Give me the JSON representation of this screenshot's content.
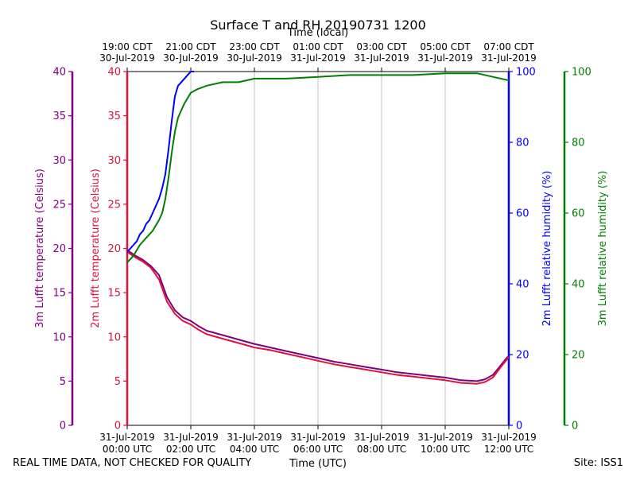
{
  "chart_data": {
    "type": "line",
    "title": "Surface T and RH 20190731 1200",
    "top_axis_label": "Time (local)",
    "bottom_axis_label": "Time (UTC)",
    "footer_left": "REAL TIME DATA, NOT CHECKED FOR QUALITY",
    "footer_right": "Site: ISS1",
    "x_range_hours": [
      0,
      12
    ],
    "x_ticks_utc": [
      {
        "hour": 0,
        "date": "31-Jul-2019",
        "time": "00:00 UTC"
      },
      {
        "hour": 2,
        "date": "31-Jul-2019",
        "time": "02:00 UTC"
      },
      {
        "hour": 4,
        "date": "31-Jul-2019",
        "time": "04:00 UTC"
      },
      {
        "hour": 6,
        "date": "31-Jul-2019",
        "time": "06:00 UTC"
      },
      {
        "hour": 8,
        "date": "31-Jul-2019",
        "time": "08:00 UTC"
      },
      {
        "hour": 10,
        "date": "31-Jul-2019",
        "time": "10:00 UTC"
      },
      {
        "hour": 12,
        "date": "31-Jul-2019",
        "time": "12:00 UTC"
      }
    ],
    "x_ticks_local": [
      {
        "hour": 0,
        "time": "19:00 CDT",
        "date": "30-Jul-2019"
      },
      {
        "hour": 2,
        "time": "21:00 CDT",
        "date": "30-Jul-2019"
      },
      {
        "hour": 4,
        "time": "23:00 CDT",
        "date": "30-Jul-2019"
      },
      {
        "hour": 6,
        "time": "01:00 CDT",
        "date": "31-Jul-2019"
      },
      {
        "hour": 8,
        "time": "03:00 CDT",
        "date": "31-Jul-2019"
      },
      {
        "hour": 10,
        "time": "05:00 CDT",
        "date": "31-Jul-2019"
      },
      {
        "hour": 12,
        "time": "07:00 CDT",
        "date": "31-Jul-2019"
      }
    ],
    "axes": [
      {
        "id": "t3m",
        "label": "3m Lufft temperature (Celsius)",
        "color": "#800080",
        "range": [
          0,
          40
        ],
        "ticks": [
          0,
          5,
          10,
          15,
          20,
          25,
          30,
          35,
          40
        ],
        "side": "left-outer"
      },
      {
        "id": "t2m",
        "label": "2m Lufft temperature (Celsius)",
        "color": "#dc143c",
        "range": [
          0,
          40
        ],
        "ticks": [
          0,
          5,
          10,
          15,
          20,
          25,
          30,
          35,
          40
        ],
        "side": "left-inner"
      },
      {
        "id": "rh2m",
        "label": "2m Lufft relative humidity (%)",
        "color": "#0000ff",
        "range": [
          0,
          100
        ],
        "ticks": [
          0,
          20,
          40,
          60,
          80,
          100
        ],
        "side": "right-inner"
      },
      {
        "id": "rh3m",
        "label": "3m Lufft relative humidity (%)",
        "color": "#008000",
        "range": [
          0,
          100
        ],
        "ticks": [
          0,
          20,
          40,
          60,
          80,
          100
        ],
        "side": "right-outer"
      }
    ],
    "series": [
      {
        "name": "3m Lufft temperature",
        "axis": "t3m",
        "color": "#800080",
        "x": [
          0,
          0.25,
          0.5,
          0.75,
          1.0,
          1.25,
          1.5,
          1.75,
          2.0,
          2.25,
          2.5,
          3.0,
          3.5,
          4.0,
          4.5,
          5.0,
          5.5,
          6.0,
          6.5,
          7.0,
          7.5,
          8.0,
          8.5,
          9.0,
          9.5,
          10.0,
          10.5,
          11.0,
          11.25,
          11.5,
          11.75,
          12.0
        ],
        "values": [
          19.8,
          19.2,
          18.7,
          18.0,
          17.0,
          14.5,
          13.0,
          12.2,
          11.8,
          11.2,
          10.7,
          10.2,
          9.7,
          9.2,
          8.8,
          8.4,
          8.0,
          7.6,
          7.2,
          6.9,
          6.6,
          6.3,
          6.0,
          5.8,
          5.6,
          5.4,
          5.1,
          5.0,
          5.2,
          5.7,
          6.8,
          7.9
        ]
      },
      {
        "name": "2m Lufft temperature",
        "axis": "t2m",
        "color": "#dc143c",
        "x": [
          0,
          0.25,
          0.5,
          0.75,
          1.0,
          1.25,
          1.5,
          1.75,
          2.0,
          2.25,
          2.5,
          3.0,
          3.5,
          4.0,
          4.5,
          5.0,
          5.5,
          6.0,
          6.5,
          7.0,
          7.5,
          8.0,
          8.5,
          9.0,
          9.5,
          10.0,
          10.5,
          11.0,
          11.25,
          11.5,
          11.75,
          12.0
        ],
        "values": [
          19.6,
          19.0,
          18.5,
          17.8,
          16.5,
          14.0,
          12.6,
          11.8,
          11.4,
          10.8,
          10.3,
          9.8,
          9.3,
          8.8,
          8.5,
          8.1,
          7.7,
          7.3,
          6.9,
          6.6,
          6.3,
          6.0,
          5.7,
          5.5,
          5.3,
          5.1,
          4.8,
          4.7,
          4.9,
          5.4,
          6.6,
          7.7
        ]
      },
      {
        "name": "2m Lufft relative humidity",
        "axis": "rh2m",
        "color": "#0000ff",
        "x": [
          0,
          0.1,
          0.2,
          0.3,
          0.4,
          0.5,
          0.6,
          0.7,
          0.8,
          0.9,
          1.0,
          1.1,
          1.2,
          1.3,
          1.4,
          1.5,
          1.6,
          1.7,
          1.8,
          1.9,
          2.0,
          2.1
        ],
        "values": [
          49,
          50,
          51,
          52,
          54,
          55,
          57,
          58,
          60,
          62,
          64,
          67,
          71,
          78,
          86,
          93,
          96,
          97,
          98,
          99,
          100,
          100
        ]
      },
      {
        "name": "3m Lufft relative humidity",
        "axis": "rh3m",
        "color": "#008000",
        "x": [
          0,
          0.2,
          0.4,
          0.6,
          0.8,
          1.0,
          1.1,
          1.2,
          1.3,
          1.4,
          1.5,
          1.6,
          1.7,
          1.8,
          2.0,
          2.2,
          2.5,
          3.0,
          3.5,
          4.0,
          4.5,
          5.0,
          6.0,
          7.0,
          8.0,
          9.0,
          10.0,
          11.0,
          11.5,
          12.0
        ],
        "values": [
          46,
          48,
          51,
          53,
          55,
          58,
          60,
          64,
          70,
          77,
          83,
          87,
          89,
          91,
          94,
          95,
          96,
          97,
          97,
          98,
          98,
          98,
          98.5,
          99,
          99,
          99,
          99.5,
          99.5,
          98.5,
          97.5
        ]
      }
    ]
  }
}
